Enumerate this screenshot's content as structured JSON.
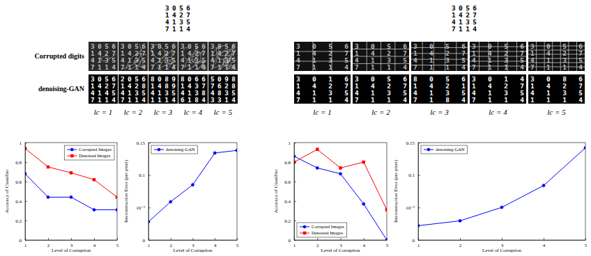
{
  "figure": {
    "row_labels": [
      "Corrupted digits",
      "denoising-GAN"
    ],
    "panels": [
      {
        "clean": [
          "3056",
          "1427",
          "4135",
          "7114"
        ],
        "levels": [
          "lc = 1",
          "lc = 2",
          "lc = 3",
          "lc = 4",
          "lc = 5"
        ],
        "denoised": [
          [
            "3056",
            "1427",
            "4145",
            "7114"
          ],
          [
            "2056",
            "1428",
            "4135",
            "7114"
          ],
          [
            "8089",
            "1489",
            "4135",
            "1114"
          ],
          [
            "8066",
            "1437",
            "4138",
            "6184"
          ],
          [
            "5098",
            "7628",
            "4835",
            "3314"
          ]
        ]
      },
      {
        "clean": [
          "3056",
          "1427",
          "4135",
          "7114"
        ],
        "levels": [
          "lc = 1",
          "lc = 2",
          "lc = 3",
          "lc = 4",
          "lc = 5"
        ],
        "denoised": [
          [
            "3016",
            "1427",
            "4135",
            "7114"
          ],
          [
            "3056",
            "1427",
            "4135",
            "7114"
          ],
          [
            "8056",
            "1421",
            "4135",
            "7184"
          ],
          [
            "3014",
            "1427",
            "4135",
            "7114"
          ],
          [
            "3086",
            "1427",
            "4135",
            "1114"
          ]
        ]
      }
    ]
  },
  "chart_data": [
    {
      "type": "line",
      "xlabel": "Level of Corruption",
      "ylabel": "Accuracy of Classifier",
      "x": [
        1,
        2,
        3,
        4,
        5
      ],
      "xlim": [
        1,
        5
      ],
      "xticks": [
        1,
        2,
        3,
        4,
        5
      ],
      "ylim": [
        0,
        1
      ],
      "yticks": [
        0,
        0.2,
        0.4,
        0.6,
        0.8,
        1
      ],
      "legend": "upper right",
      "series": [
        {
          "name": "Corrupted Images",
          "color": "#0000ff",
          "marker": "circle",
          "values": [
            0.68,
            0.44,
            0.44,
            0.31,
            0.31
          ]
        },
        {
          "name": "Denoised Images",
          "color": "#ff0000",
          "marker": "square",
          "values": [
            0.94,
            0.75,
            0.69,
            0.62,
            0.44
          ]
        }
      ]
    },
    {
      "type": "line",
      "xlabel": "Level of Corruption",
      "ylabel": "Reconstruction Error (per pixel)",
      "x": [
        1,
        2,
        3,
        4,
        5
      ],
      "xlim": [
        1,
        5
      ],
      "xticks": [
        1,
        2,
        3,
        4,
        5
      ],
      "ylim": [
        0,
        0.15
      ],
      "yticks": [
        0,
        {
          "value": 0.01,
          "label": "10⁻²"
        },
        0.1,
        0.15
      ],
      "legend": "upper left",
      "series": [
        {
          "name": "denoising-GAN",
          "color": "#0000ff",
          "marker": "circle",
          "values": [
            0.0056,
            0.026,
            0.073,
            0.134,
            0.138
          ]
        }
      ]
    },
    {
      "type": "line",
      "xlabel": "Level of Corruption",
      "ylabel": "Accuracy of Classifier",
      "x": [
        1,
        2,
        3,
        4,
        5
      ],
      "xlim": [
        1,
        5
      ],
      "xticks": [
        1,
        2,
        3,
        4,
        5
      ],
      "ylim": [
        0,
        1
      ],
      "yticks": [
        0,
        0.2,
        0.4,
        0.6,
        0.8,
        1
      ],
      "legend": "lower left",
      "series": [
        {
          "name": "Corrupted Images",
          "color": "#0000ff",
          "marker": "circle",
          "values": [
            0.86,
            0.74,
            0.68,
            0.37,
            0
          ]
        },
        {
          "name": "Denoised Images",
          "color": "#ff0000",
          "marker": "square",
          "values": [
            0.8,
            0.93,
            0.74,
            0.8,
            0.31
          ]
        }
      ]
    },
    {
      "type": "line",
      "xlabel": "Level of Corruption",
      "ylabel": "Reconstruction Error (per pixel)",
      "x": [
        1,
        2,
        3,
        4,
        5
      ],
      "xlim": [
        1,
        5
      ],
      "xticks": [
        1,
        2,
        3,
        4,
        5
      ],
      "ylim": [
        0,
        0.15
      ],
      "yticks": [
        0,
        {
          "value": 0.01,
          "label": "10⁻²"
        },
        0.1,
        0.15
      ],
      "legend": "upper left",
      "series": [
        {
          "name": "denoising-GAN",
          "color": "#0000ff",
          "marker": "circle",
          "values": [
            0.0044,
            0.0059,
            0.0105,
            0.071,
            0.142
          ]
        }
      ]
    }
  ]
}
